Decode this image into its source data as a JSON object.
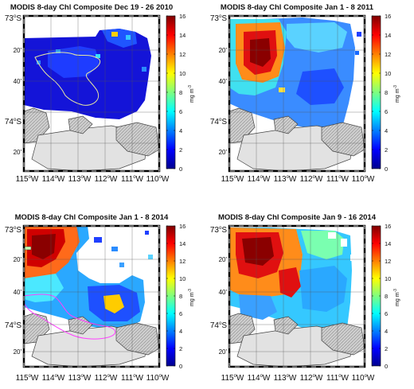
{
  "colorbar": {
    "ticks": [
      "0",
      "2",
      "4",
      "6",
      "8",
      "10",
      "12",
      "14",
      "16"
    ],
    "unit": "mg m",
    "unit_sup": "-3"
  },
  "axes": {
    "lat_major": [
      "73",
      "74"
    ],
    "lat_minor": [
      "20'",
      "40'",
      "20'"
    ],
    "deg": "o",
    "lat_suffix": "S",
    "lon_values": [
      "115",
      "114",
      "113",
      "112",
      "111",
      "110"
    ],
    "lon_suffix": "W"
  },
  "panels": [
    {
      "title": "MODIS 8-day Chl Composite Dec 19 - 26 2010"
    },
    {
      "title": "MODIS 8-day Chl Composite Jan 1 - 8 2011"
    },
    {
      "title": "MODIS 8-day Chl Composite Jan 1 - 8 2014"
    },
    {
      "title": "MODIS 8-day Chl Composite Jan 9 - 16 2014"
    }
  ]
}
